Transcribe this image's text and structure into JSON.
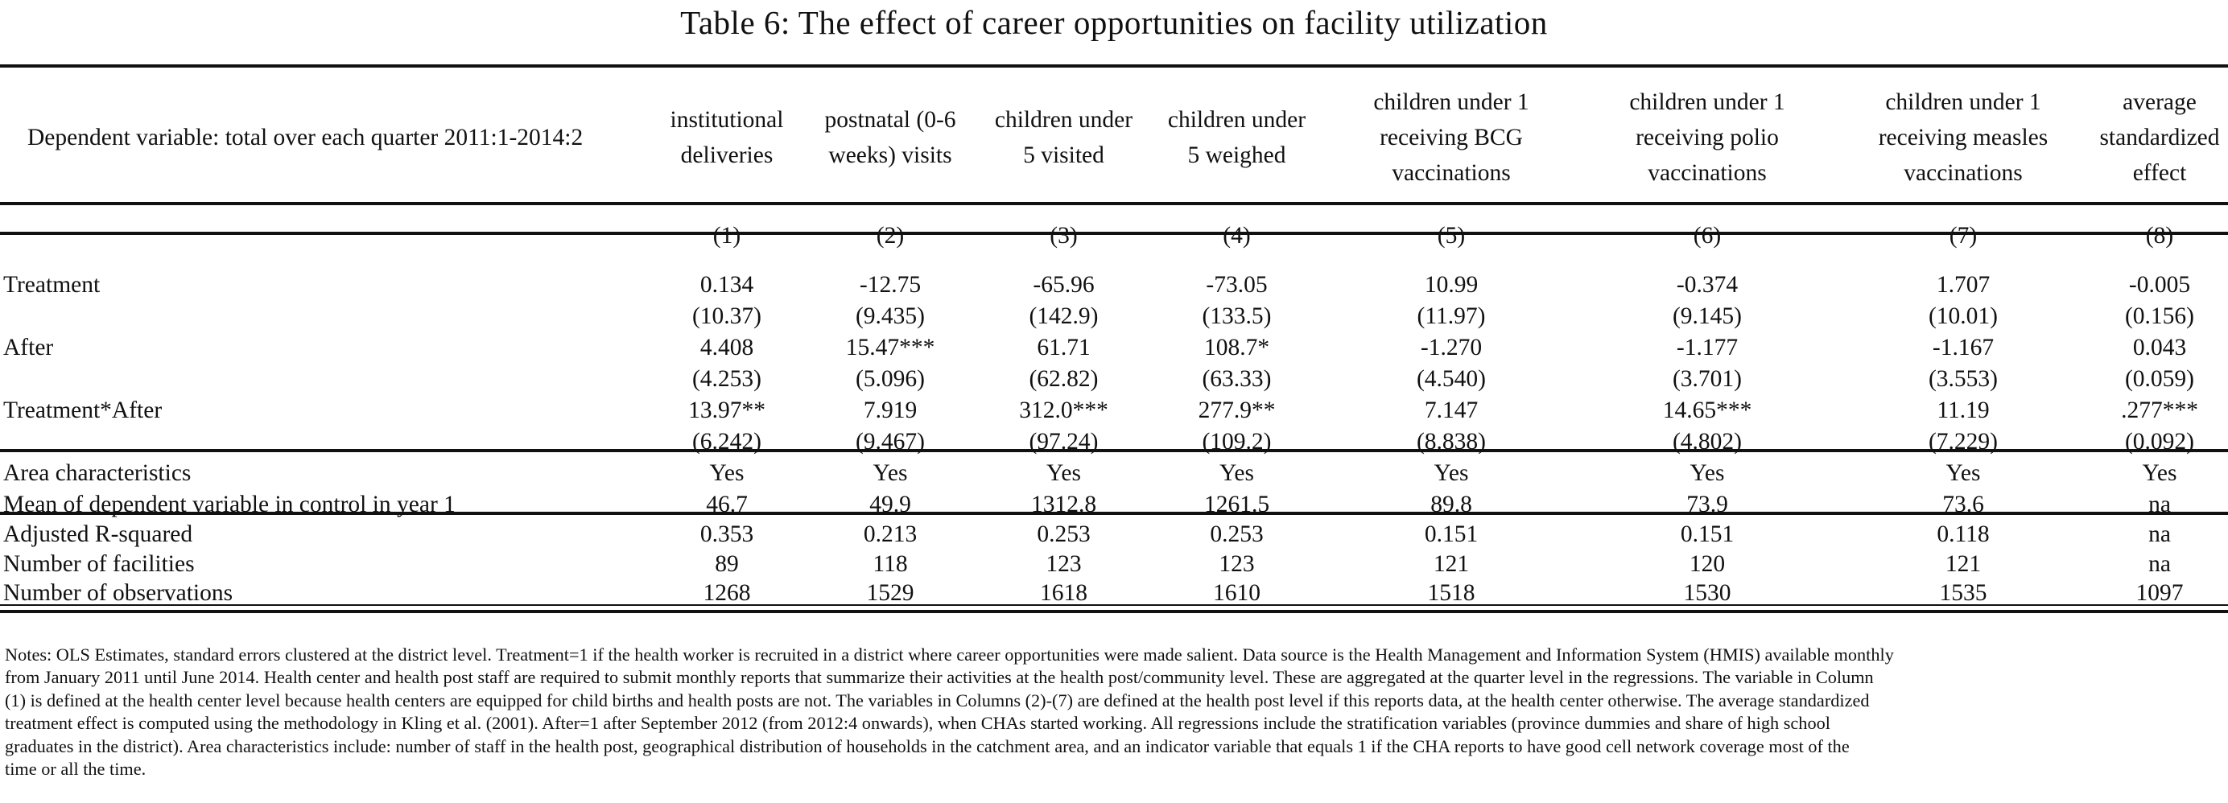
{
  "title": "Table 6:  The effect of career opportunities on facility utilization",
  "dependent_variable_label": "Dependent variable: total over each quarter 2011:1-2014:2",
  "columns": [
    {
      "line1": "institutional",
      "line2": "deliveries",
      "line3": "",
      "number": "(1)"
    },
    {
      "line1": "postnatal (0-6",
      "line2": "weeks) visits",
      "line3": "",
      "number": "(2)"
    },
    {
      "line1": "children under",
      "line2": "5 visited",
      "line3": "",
      "number": "(3)"
    },
    {
      "line1": "children under",
      "line2": "5 weighed",
      "line3": "",
      "number": "(4)"
    },
    {
      "line1": "children under 1",
      "line2": "receiving BCG",
      "line3": "vaccinations",
      "number": "(5)"
    },
    {
      "line1": "children under 1",
      "line2": "receiving polio",
      "line3": "vaccinations",
      "number": "(6)"
    },
    {
      "line1": "children under 1",
      "line2": "receiving measles",
      "line3": "vaccinations",
      "number": "(7)"
    },
    {
      "line1": "average",
      "line2": "standardized",
      "line3": "effect",
      "number": "(8)"
    }
  ],
  "rows": [
    {
      "label": "Treatment",
      "values": [
        "0.134",
        "-12.75",
        "-65.96",
        "-73.05",
        "10.99",
        "-0.374",
        "1.707",
        "-0.005"
      ]
    },
    {
      "label": "",
      "values": [
        "(10.37)",
        "(9.435)",
        "(142.9)",
        "(133.5)",
        "(11.97)",
        "(9.145)",
        "(10.01)",
        "(0.156)"
      ]
    },
    {
      "label": "After",
      "values": [
        "4.408",
        "15.47***",
        "61.71",
        "108.7*",
        "-1.270",
        "-1.177",
        "-1.167",
        "0.043"
      ]
    },
    {
      "label": "",
      "values": [
        "(4.253)",
        "(5.096)",
        "(62.82)",
        "(63.33)",
        "(4.540)",
        "(3.701)",
        "(3.553)",
        "(0.059)"
      ]
    },
    {
      "label": "Treatment*After",
      "values": [
        "13.97**",
        "7.919",
        "312.0***",
        "277.9**",
        "7.147",
        "14.65***",
        "11.19",
        ".277***"
      ]
    },
    {
      "label": "",
      "values": [
        "(6.242)",
        "(9.467)",
        "(97.24)",
        "(109.2)",
        "(8.838)",
        "(4.802)",
        "(7.229)",
        "(0.092)"
      ]
    },
    {
      "label": "Area characteristics",
      "values": [
        "Yes",
        "Yes",
        "Yes",
        "Yes",
        "Yes",
        "Yes",
        "Yes",
        "Yes"
      ]
    },
    {
      "label": "Mean of dependent variable in control in year 1",
      "values": [
        "46.7",
        "49.9",
        "1312.8",
        "1261.5",
        "89.8",
        "73.9",
        "73.6",
        "na"
      ]
    },
    {
      "label": "Adjusted R-squared",
      "values": [
        "0.353",
        "0.213",
        "0.253",
        "0.253",
        "0.151",
        "0.151",
        "0.118",
        "na"
      ]
    },
    {
      "label": "Number of facilities",
      "values": [
        "89",
        "118",
        "123",
        "123",
        "121",
        "120",
        "121",
        "na"
      ]
    },
    {
      "label": "Number of observations",
      "values": [
        "1268",
        "1529",
        "1618",
        "1610",
        "1518",
        "1530",
        "1535",
        "1097"
      ]
    }
  ],
  "notes": [
    "Notes: OLS Estimates, standard errors clustered at the district level. Treatment=1 if the health worker is recruited in a district where career opportunities were made salient. Data source is the Health Management and Information System (HMIS) available monthly",
    "from January 2011 until June 2014. Health center and health post staff are required to submit monthly reports that summarize their activities at the health post/community level. These are aggregated at the quarter level in the regressions. The variable in Column",
    "(1) is defined at the health center level because health centers are equipped for child births and health posts are not. The variables in Columns (2)-(7) are defined at the health post level if this reports data, at the health center otherwise. The average standardized",
    "treatment effect is computed using the methodology in Kling et al. (2001). After=1 after September 2012 (from 2012:4 onwards), when CHAs started working.  All regressions include the stratification variables (province dummies and share of high school",
    "graduates in the district). Area characteristics include: number of staff in the health post, geographical distribution of households in the catchment area, and an indicator variable that equals 1 if the CHA reports to have good cell network coverage most of the",
    "time or all the time."
  ]
}
